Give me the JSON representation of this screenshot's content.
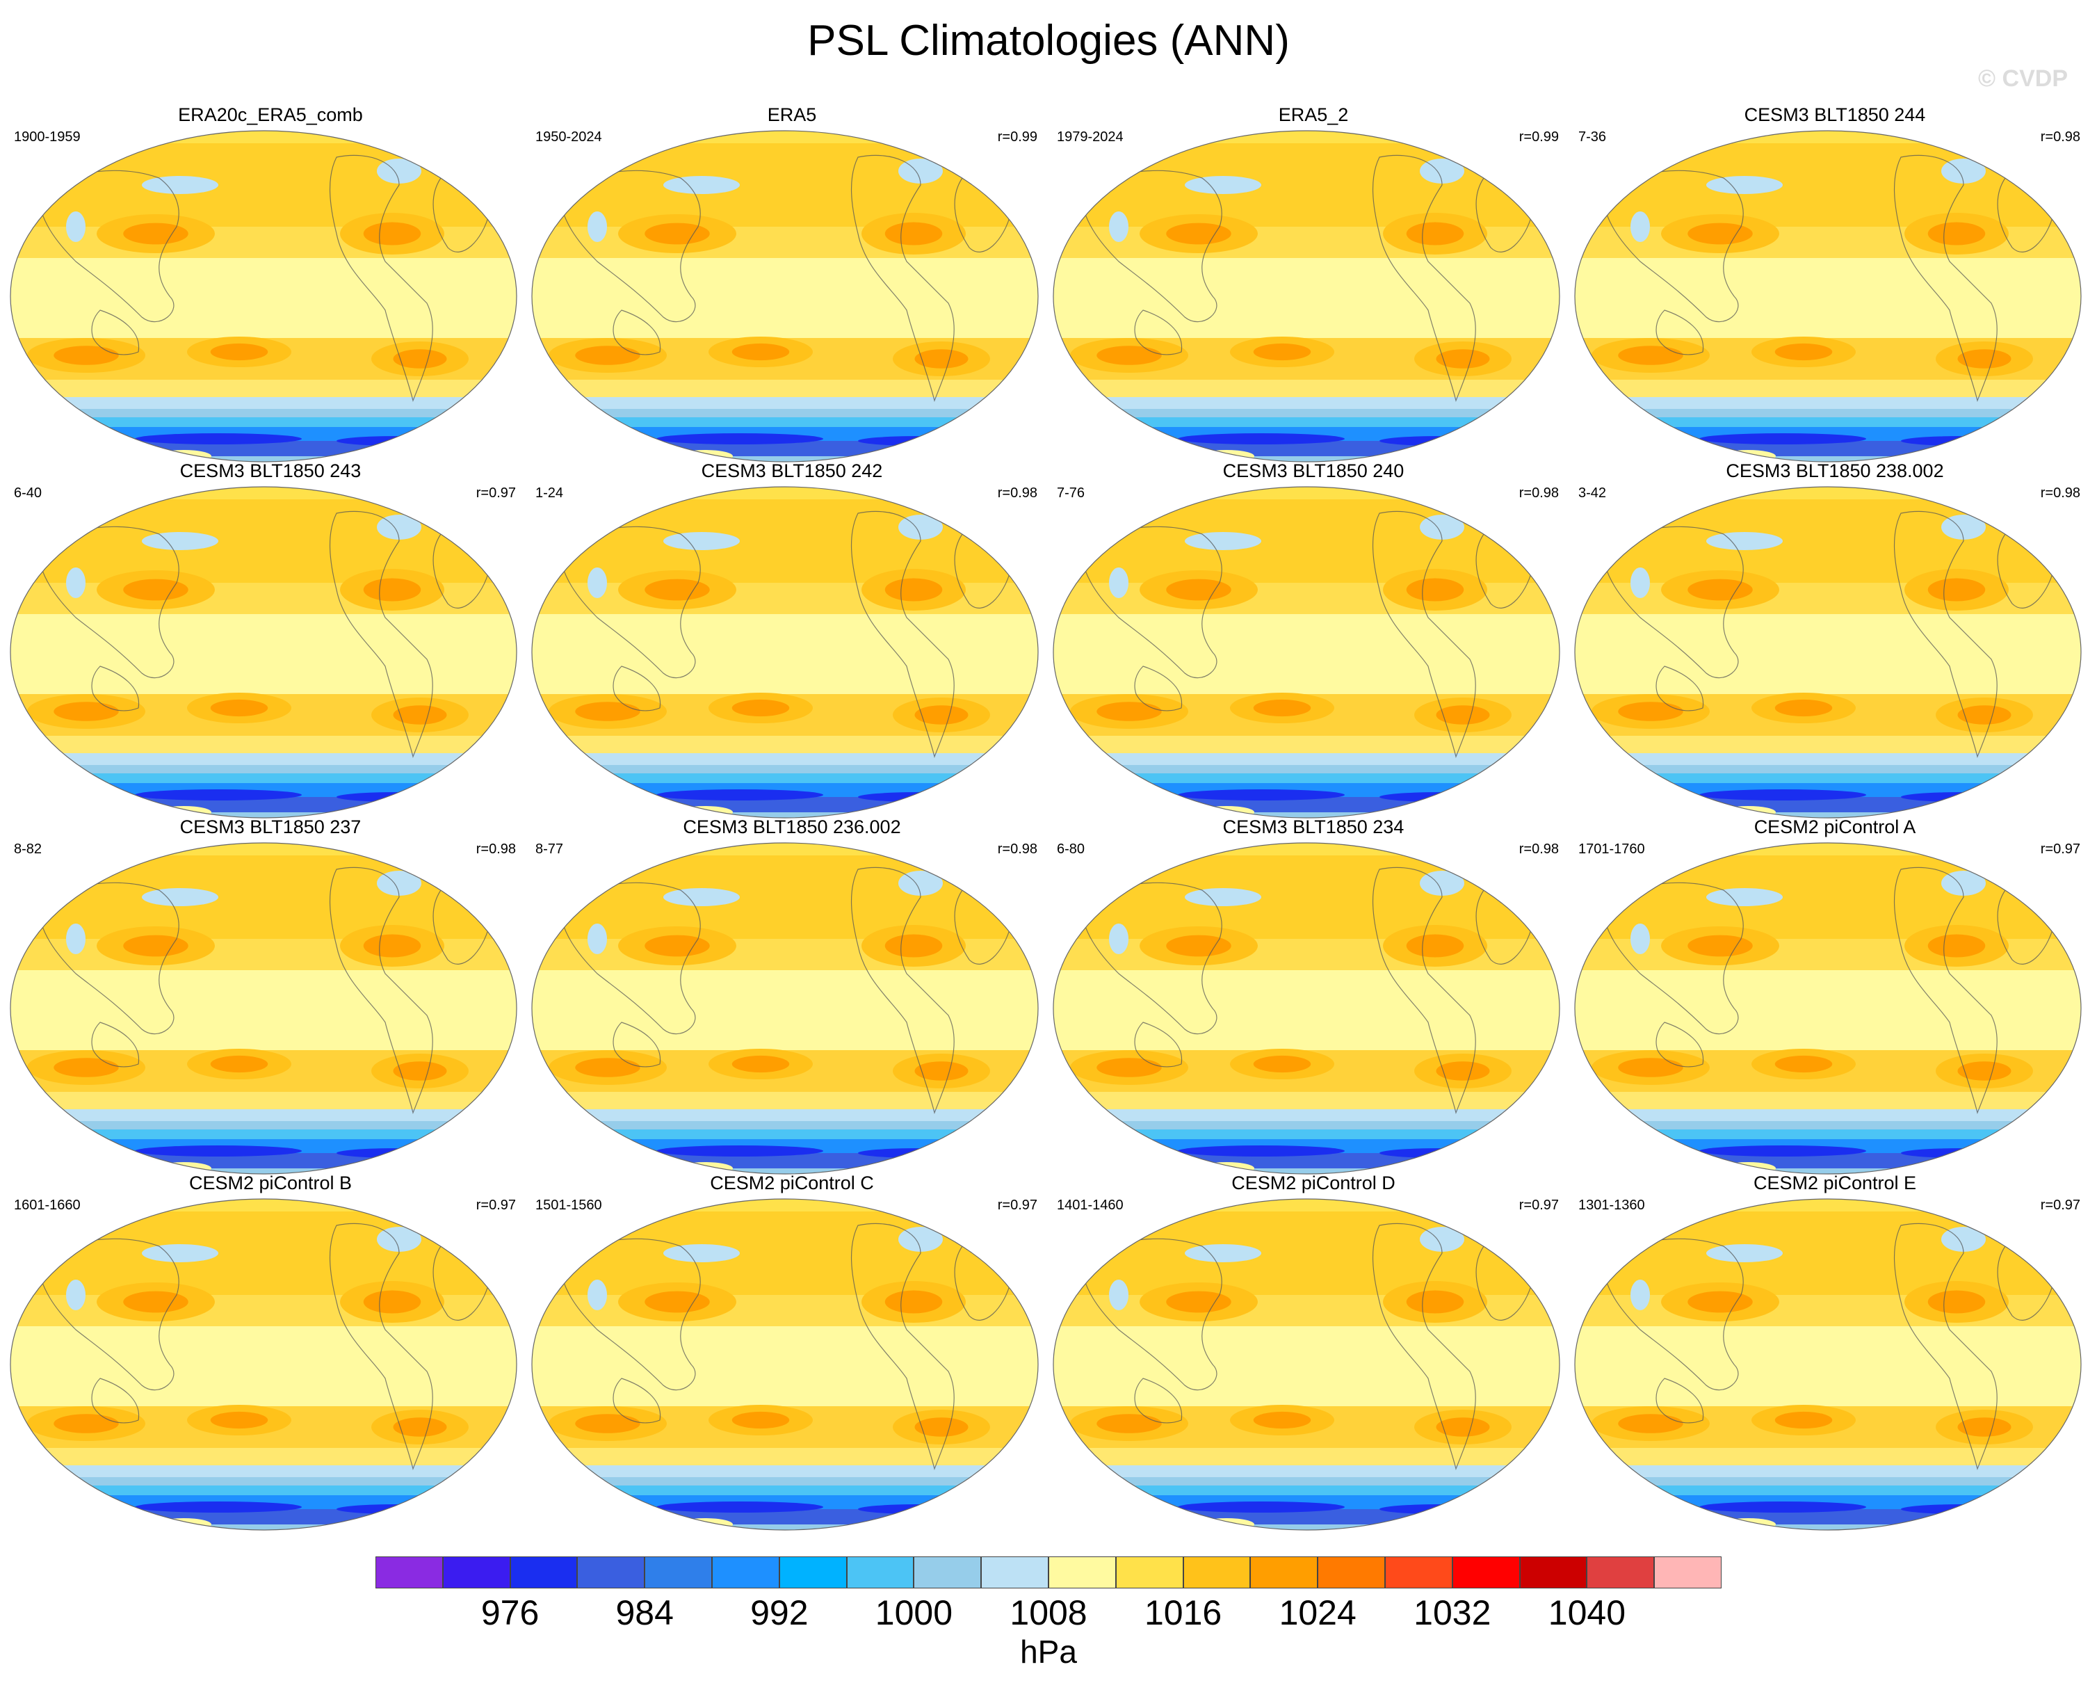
{
  "title": "PSL Climatologies (ANN)",
  "watermark": "© CVDP",
  "units": "hPa",
  "colorbar": {
    "colors": [
      "#8a2be2",
      "#3b1cf0",
      "#1a2ef0",
      "#3a5fe0",
      "#2f7fea",
      "#1e90ff",
      "#00b2ff",
      "#4cc4f5",
      "#96cdea",
      "#bde1f5",
      "#fffaa0",
      "#ffe14a",
      "#ffc21a",
      "#ff9e00",
      "#ff7a00",
      "#ff4a1a",
      "#ff0000",
      "#cc0000",
      "#e04040",
      "#ffb6b6"
    ],
    "labels": [
      "976",
      "984",
      "992",
      "1000",
      "1008",
      "1016",
      "1024",
      "1032",
      "1040"
    ]
  },
  "panels": [
    {
      "title": "ERA20c_ERA5_comb",
      "years": "1900-1959",
      "r": ""
    },
    {
      "title": "ERA5",
      "years": "1950-2024",
      "r": "r=0.99"
    },
    {
      "title": "ERA5_2",
      "years": "1979-2024",
      "r": "r=0.99"
    },
    {
      "title": "CESM3 BLT1850 244",
      "years": "7-36",
      "r": "r=0.98"
    },
    {
      "title": "CESM3 BLT1850 243",
      "years": "6-40",
      "r": "r=0.97"
    },
    {
      "title": "CESM3 BLT1850 242",
      "years": "1-24",
      "r": "r=0.98"
    },
    {
      "title": "CESM3 BLT1850 240",
      "years": "7-76",
      "r": "r=0.98"
    },
    {
      "title": "CESM3 BLT1850 238.002",
      "years": "3-42",
      "r": "r=0.98"
    },
    {
      "title": "CESM3 BLT1850 237",
      "years": "8-82",
      "r": "r=0.98"
    },
    {
      "title": "CESM3 BLT1850 236.002",
      "years": "8-77",
      "r": "r=0.98"
    },
    {
      "title": "CESM3 BLT1850 234",
      "years": "6-80",
      "r": "r=0.98"
    },
    {
      "title": "CESM2 piControl A",
      "years": "1701-1760",
      "r": "r=0.97"
    },
    {
      "title": "CESM2 piControl B",
      "years": "1601-1660",
      "r": "r=0.97"
    },
    {
      "title": "CESM2 piControl C",
      "years": "1501-1560",
      "r": "r=0.97"
    },
    {
      "title": "CESM2 piControl D",
      "years": "1401-1460",
      "r": "r=0.97"
    },
    {
      "title": "CESM2 piControl E",
      "years": "1301-1360",
      "r": "r=0.97"
    }
  ]
}
